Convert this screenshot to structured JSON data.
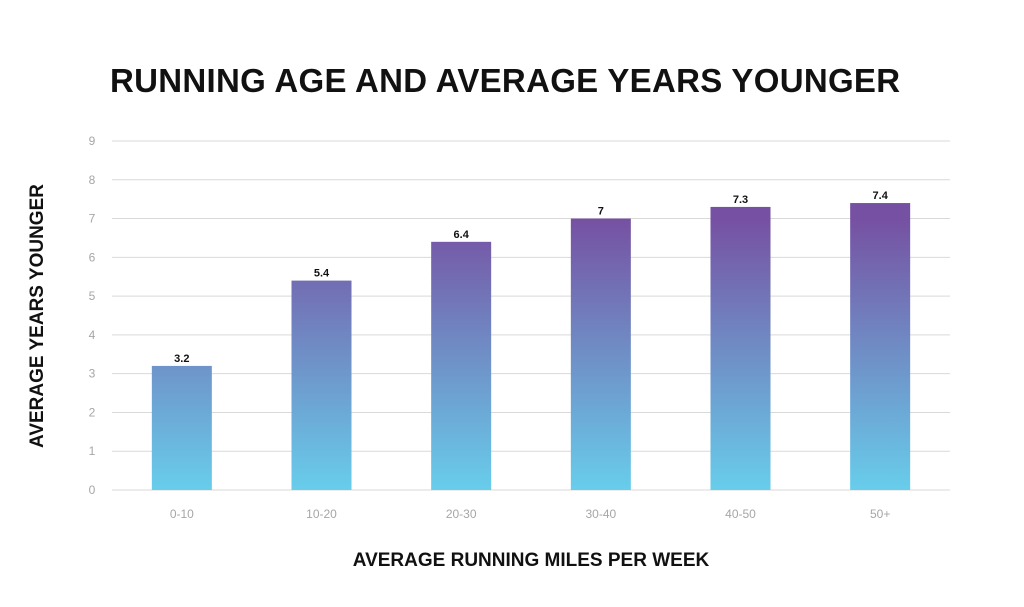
{
  "chart_data": {
    "type": "bar",
    "title": "RUNNING AGE AND AVERAGE YEARS YOUNGER",
    "xlabel": "AVERAGE RUNNING MILES PER WEEK",
    "ylabel": "AVERAGE YEARS YOUNGER",
    "categories": [
      "0-10",
      "10-20",
      "20-30",
      "30-40",
      "40-50",
      "50+"
    ],
    "values": [
      3.2,
      5.4,
      6.4,
      7,
      7.3,
      7.4
    ],
    "data_labels": [
      "3.2",
      "5.4",
      "6.4",
      "7",
      "7.3",
      "7.4"
    ],
    "ylim": [
      0,
      9
    ],
    "yticks": [
      0,
      1,
      2,
      3,
      4,
      5,
      6,
      7,
      8,
      9
    ],
    "grid": true,
    "legend": "none",
    "colors": {
      "bar_top": "#7650a2",
      "bar_bottom": "#68cdeb",
      "grid": "#d9d9d9",
      "tick_text": "#a6a6a6",
      "text": "#111111"
    }
  }
}
